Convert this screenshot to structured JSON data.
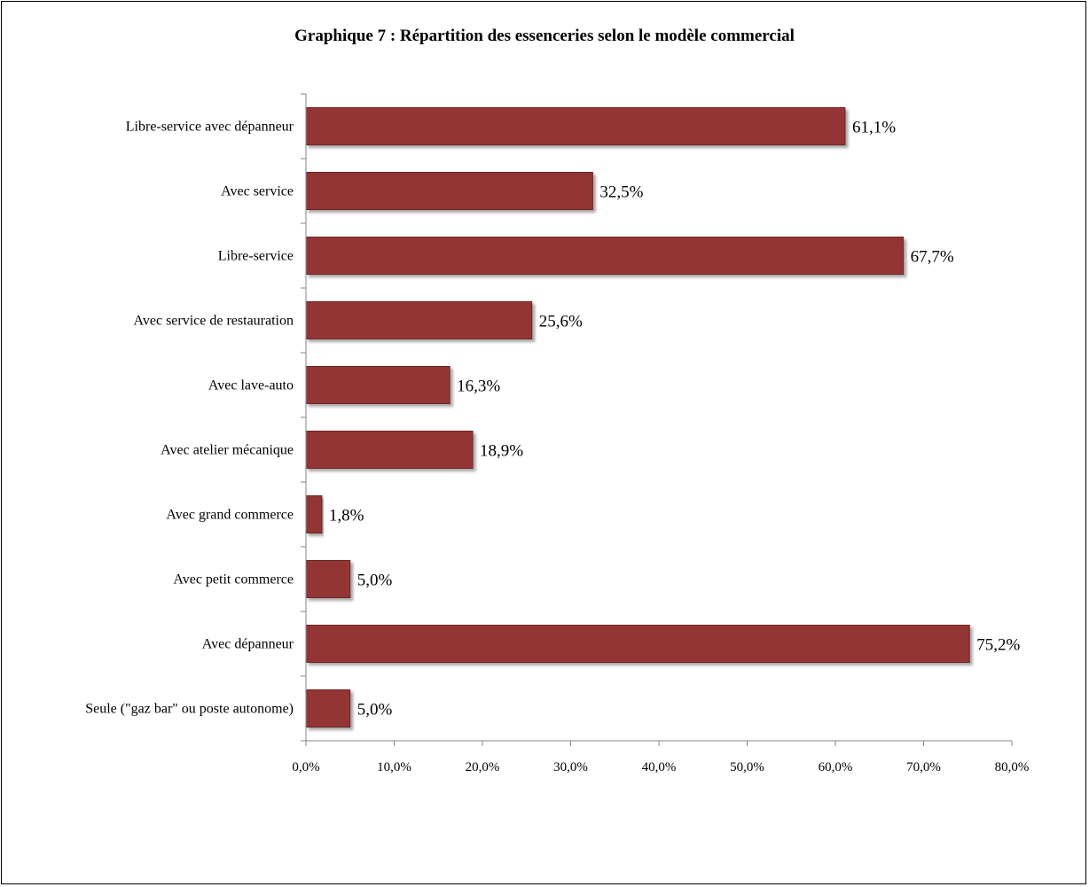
{
  "chart_data": {
    "type": "bar",
    "orientation": "horizontal",
    "title": "Graphique 7 : Répartition des essenceries selon le modèle commercial",
    "categories": [
      "Libre-service avec dépanneur",
      "Avec service",
      "Libre-service",
      "Avec service de restauration",
      "Avec lave-auto",
      "Avec atelier mécanique",
      "Avec grand commerce",
      "Avec petit commerce",
      "Avec dépanneur",
      "Seule (\"gaz bar\" ou poste autonome)"
    ],
    "values": [
      61.1,
      32.5,
      67.7,
      25.6,
      16.3,
      18.9,
      1.8,
      5.0,
      75.2,
      5.0
    ],
    "value_labels": [
      "61,1%",
      "32,5%",
      "67,7%",
      "25,6%",
      "16,3%",
      "18,9%",
      "1,8%",
      "5,0%",
      "75,2%",
      "5,0%"
    ],
    "xlim": [
      0,
      80
    ],
    "x_ticks": [
      "0,0%",
      "10,0%",
      "20,0%",
      "30,0%",
      "40,0%",
      "50,0%",
      "60,0%",
      "70,0%",
      "80,0%"
    ],
    "xlabel": "",
    "ylabel": "",
    "grid": false,
    "legend": "none",
    "bar_color": "#943634"
  }
}
